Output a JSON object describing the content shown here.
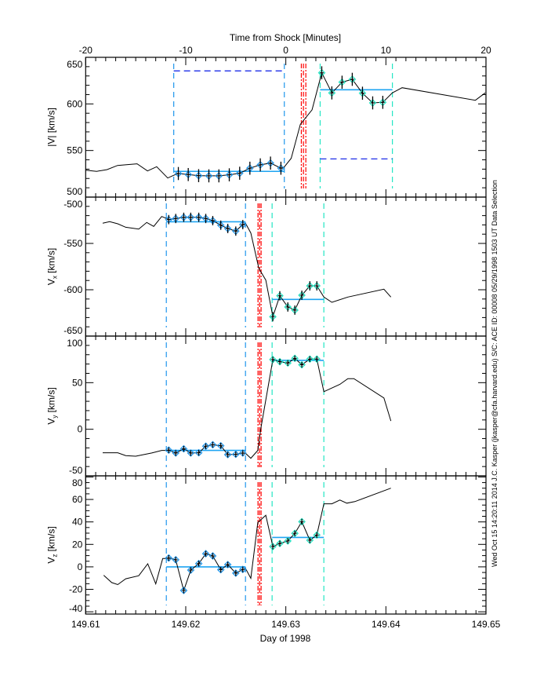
{
  "top_axis": {
    "title": "Time from Shock [Minutes]",
    "ticks": [
      "-20",
      "-10",
      "0",
      "10",
      "20"
    ],
    "range": [
      -20,
      20
    ],
    "minor_step": 1
  },
  "bottom_axis": {
    "title": "Day of 1998",
    "ticks": [
      "149.61",
      "149.62",
      "149.63",
      "149.64",
      "149.65"
    ],
    "range": [
      149.61,
      149.65
    ],
    "minor_step": 0.001
  },
  "side_text": "Wed Oct 15 14:20:11 2014   J.C. Kasper (jkasper@cfa.harvard.edu)   S/C: ACE ID: 00008 05/29/1998   1503 UT Data Selection",
  "colors": {
    "pre_window": "#1e96ec",
    "post_window": "#22e6c4",
    "shock": "#ff0000",
    "window_level": "#1e2ee8",
    "average": "#1ea4f2",
    "line": "#000000"
  },
  "chart_data": [
    {
      "type": "line",
      "xunits": "minutes from shock",
      "ylabel": "|V| [km/s]",
      "ylabel_sub": "",
      "ylim": [
        500,
        650
      ],
      "yticks": [
        500,
        550,
        600,
        650
      ],
      "yminor": 10,
      "line": [
        [
          -20,
          528.9
        ],
        [
          -18.9,
          527.6
        ],
        [
          -17.86,
          529.5
        ],
        [
          -16.81,
          534.0
        ],
        [
          -16.03,
          534.6
        ],
        [
          -14.86,
          535.7
        ],
        [
          -13.82,
          528.1
        ],
        [
          -12.9,
          532.6
        ],
        [
          -11.8,
          520.5
        ],
        [
          -11.2,
          523.4
        ],
        [
          -10.74,
          525.3
        ],
        [
          -9.75,
          524.2
        ],
        [
          -8.71,
          523.0
        ],
        [
          -7.69,
          522.8
        ],
        [
          -6.69,
          522.8
        ],
        [
          -5.65,
          523.9
        ],
        [
          -4.61,
          525.6
        ],
        [
          -3.59,
          531.0
        ],
        [
          -2.55,
          534.6
        ],
        [
          -1.53,
          536.5
        ],
        [
          -0.49,
          531.0
        ],
        [
          -0.16,
          532.3
        ],
        [
          0.54,
          541.6
        ],
        [
          1.45,
          578.1
        ],
        [
          2.62,
          593.6
        ],
        [
          3.59,
          633.4
        ],
        [
          4.6,
          611.8
        ],
        [
          5.62,
          623.3
        ],
        [
          6.64,
          626.4
        ],
        [
          7.66,
          611.5
        ],
        [
          8.68,
          601.1
        ],
        [
          9.69,
          601.7
        ],
        [
          10.64,
          611.8
        ],
        [
          11.62,
          617.4
        ],
        [
          18.94,
          603.9
        ],
        [
          19.92,
          611.8
        ]
      ],
      "pre_points": {
        "x": [
          -10.74,
          -9.75,
          -8.71,
          -7.69,
          -6.69,
          -5.65,
          -4.61,
          -3.59,
          -2.55,
          -1.53,
          -0.49
        ],
        "y": [
          525.3,
          524.2,
          523.0,
          522.8,
          522.8,
          523.9,
          525.6,
          531.0,
          534.6,
          536.5,
          531.0
        ],
        "err": 7
      },
      "post_points": {
        "x": [
          3.59,
          4.6,
          5.62,
          6.64,
          7.66,
          8.68,
          9.69
        ],
        "y": [
          633.4,
          611.8,
          623.3,
          626.4,
          611.5,
          601.1,
          601.7
        ],
        "err": 7
      },
      "pre_window": [
        -11.2,
        -0.15
      ],
      "post_window": [
        3.43,
        10.65
      ],
      "shock_lines": [
        1.55,
        1.76,
        2.0
      ],
      "pre_average": 527.6,
      "post_average": 615.2,
      "pre_window_level": 635.4,
      "post_window_level": 541.0
    },
    {
      "type": "line",
      "xunits": "day",
      "ylabel": "V",
      "ylabel_sub": "x",
      "yunit": "[km/s]",
      "ylim": [
        -650,
        -500
      ],
      "yticks": [
        -650,
        -600,
        -550,
        -500
      ],
      "yminor": 10,
      "line": [
        [
          149.6117,
          -528.2
        ],
        [
          149.6124,
          -526.5
        ],
        [
          149.6132,
          -528.8
        ],
        [
          149.614,
          -532.5
        ],
        [
          149.6153,
          -534.5
        ],
        [
          149.6161,
          -527.4
        ],
        [
          149.6168,
          -531.6
        ],
        [
          149.6176,
          -520.9
        ],
        [
          149.6181,
          -523.1
        ],
        [
          149.6183,
          -524.3
        ],
        [
          149.619,
          -523.1
        ],
        [
          149.6198,
          -521.8
        ],
        [
          149.6205,
          -521.8
        ],
        [
          149.6213,
          -521.8
        ],
        [
          149.622,
          -523.1
        ],
        [
          149.6227,
          -525.4
        ],
        [
          149.6235,
          -530.3
        ],
        [
          149.6242,
          -533.9
        ],
        [
          149.625,
          -536.7
        ],
        [
          149.6257,
          -529.7
        ],
        [
          149.626,
          -528.8
        ],
        [
          149.6265,
          -538.7
        ],
        [
          149.6273,
          -576.9
        ],
        [
          149.628,
          -589.6
        ],
        [
          149.6287,
          -629.1
        ],
        [
          149.6294,
          -606.5
        ],
        [
          149.6302,
          -618.6
        ],
        [
          149.6309,
          -622.0
        ],
        [
          149.6316,
          -605.9
        ],
        [
          149.6324,
          -595.8
        ],
        [
          149.6331,
          -595.8
        ],
        [
          149.6338,
          -607.9
        ],
        [
          149.6346,
          -613.6
        ],
        [
          149.6362,
          -607.9
        ],
        [
          149.6398,
          -599.4
        ],
        [
          149.6405,
          -607.9
        ]
      ],
      "pre_points": {
        "x": [
          149.6183,
          149.619,
          149.6198,
          149.6205,
          149.6213,
          149.622,
          149.6227,
          149.6235,
          149.6242,
          149.625,
          149.6257
        ],
        "y": [
          -524.3,
          -523.1,
          -521.8,
          -521.8,
          -521.8,
          -523.1,
          -525.4,
          -530.3,
          -533.9,
          -536.7,
          -529.7
        ],
        "err": 5
      },
      "post_points": {
        "x": [
          149.6287,
          149.6294,
          149.6302,
          149.6309,
          149.6316,
          149.6324,
          149.6331
        ],
        "y": [
          -629.1,
          -606.5,
          -618.6,
          -622.0,
          -605.9,
          -595.8,
          -595.8
        ],
        "err": 5
      },
      "pre_window": [
        149.61806,
        149.62597
      ],
      "post_window": [
        149.62863,
        149.6338
      ],
      "shock_lines": [
        149.62722,
        149.62738,
        149.62753
      ],
      "pre_average": -526.6,
      "post_average": -610.4
    },
    {
      "type": "line",
      "xunits": "day",
      "ylabel": "V",
      "ylabel_sub": "y",
      "yunit": "[km/s]",
      "ylim": [
        -50,
        100
      ],
      "yticks": [
        -50,
        0,
        50,
        100
      ],
      "yminor": 10,
      "line": [
        [
          149.6117,
          -25.2
        ],
        [
          149.6132,
          -25.2
        ],
        [
          149.614,
          -28.3
        ],
        [
          149.615,
          -28.9
        ],
        [
          149.6166,
          -25.5
        ],
        [
          149.6176,
          -22.7
        ],
        [
          149.6181,
          -22.7
        ],
        [
          149.6183,
          -22.4
        ],
        [
          149.619,
          -25.5
        ],
        [
          149.6198,
          -21.0
        ],
        [
          149.6205,
          -25.5
        ],
        [
          149.6213,
          -25.2
        ],
        [
          149.622,
          -18.2
        ],
        [
          149.6227,
          -16.6
        ],
        [
          149.6235,
          -17.7
        ],
        [
          149.6242,
          -27.2
        ],
        [
          149.625,
          -26.9
        ],
        [
          149.6257,
          -25.5
        ],
        [
          149.626,
          -26.1
        ],
        [
          149.6265,
          -31.1
        ],
        [
          149.6272,
          -22.7
        ],
        [
          149.6275,
          0.5
        ],
        [
          149.6287,
          74.8
        ],
        [
          149.6294,
          72.5
        ],
        [
          149.6302,
          71.1
        ],
        [
          149.6309,
          76.1
        ],
        [
          149.6316,
          69.2
        ],
        [
          149.6324,
          75.3
        ],
        [
          149.6331,
          75.3
        ],
        [
          149.6338,
          40.3
        ],
        [
          149.6354,
          48.2
        ],
        [
          149.6362,
          54.3
        ],
        [
          149.6368,
          54.3
        ],
        [
          149.6398,
          33.6
        ],
        [
          149.6405,
          8.9
        ]
      ],
      "pre_points": {
        "x": [
          149.6183,
          149.619,
          149.6198,
          149.6205,
          149.6213,
          149.622,
          149.6227,
          149.6235,
          149.6242,
          149.625,
          149.6257
        ],
        "y": [
          -22.4,
          -25.5,
          -21.0,
          -25.5,
          -25.2,
          -18.2,
          -16.6,
          -17.7,
          -27.2,
          -26.9,
          -25.5
        ],
        "err": 3
      },
      "post_points": {
        "x": [
          149.6287,
          149.6294,
          149.6302,
          149.6309,
          149.6316,
          149.6324,
          149.6331
        ],
        "y": [
          74.8,
          72.5,
          71.1,
          76.1,
          69.2,
          75.3,
          75.3
        ],
        "err": 3
      },
      "pre_window": [
        149.61806,
        149.62597
      ],
      "post_window": [
        149.62863,
        149.6338
      ],
      "shock_lines": [
        149.62722,
        149.62738,
        149.62753
      ],
      "pre_average": -22.7,
      "post_average": 73.9
    },
    {
      "type": "line",
      "xunits": "day",
      "ylabel": "V",
      "ylabel_sub": "z",
      "yunit": "[km/s]",
      "ylim": [
        -42,
        81
      ],
      "yticks": [
        -40,
        -20,
        0,
        20,
        40,
        60,
        80
      ],
      "yminor": 5,
      "line": [
        [
          149.6118,
          -7.5
        ],
        [
          149.6126,
          -14.0
        ],
        [
          149.6132,
          -15.8
        ],
        [
          149.614,
          -10.6
        ],
        [
          149.6153,
          -7.9
        ],
        [
          149.6162,
          2.7
        ],
        [
          149.617,
          -15.1
        ],
        [
          149.6177,
          7.5
        ],
        [
          149.6181,
          7.5
        ],
        [
          149.6183,
          7.9
        ],
        [
          149.619,
          6.3
        ],
        [
          149.6198,
          -21.0
        ],
        [
          149.6205,
          -2.9
        ],
        [
          149.6213,
          2.9
        ],
        [
          149.622,
          11.7
        ],
        [
          149.6227,
          9.7
        ],
        [
          149.6235,
          -2.5
        ],
        [
          149.6242,
          2.0
        ],
        [
          149.625,
          -5.6
        ],
        [
          149.6257,
          -2.3
        ],
        [
          149.626,
          -1.8
        ],
        [
          149.6265,
          -10.2
        ],
        [
          149.6272,
          39.5
        ],
        [
          149.628,
          45.9
        ],
        [
          149.6287,
          18.1
        ],
        [
          149.6294,
          20.8
        ],
        [
          149.6302,
          23.1
        ],
        [
          149.6309,
          29.8
        ],
        [
          149.6316,
          40.2
        ],
        [
          149.6324,
          23.7
        ],
        [
          149.6331,
          28.3
        ],
        [
          149.6338,
          56.1
        ],
        [
          149.6346,
          56.1
        ],
        [
          149.6354,
          59.5
        ],
        [
          149.6361,
          56.7
        ],
        [
          149.6369,
          58.1
        ],
        [
          149.6405,
          70.0
        ]
      ],
      "pre_points": {
        "x": [
          149.6183,
          149.619,
          149.6198,
          149.6205,
          149.6213,
          149.622,
          149.6227,
          149.6235,
          149.6242,
          149.625,
          149.6257
        ],
        "y": [
          7.9,
          6.3,
          -21.0,
          -2.9,
          2.9,
          11.7,
          9.7,
          -2.5,
          2.0,
          -5.6,
          -2.3
        ],
        "err": 2.5
      },
      "post_points": {
        "x": [
          149.6287,
          149.6294,
          149.6302,
          149.6309,
          149.6316,
          149.6324,
          149.6331
        ],
        "y": [
          18.1,
          20.8,
          23.1,
          29.8,
          40.2,
          23.7,
          28.3
        ],
        "err": 2.5
      },
      "pre_window": [
        149.61806,
        149.62597
      ],
      "post_window": [
        149.62863,
        149.6338
      ],
      "shock_lines": [
        149.62722,
        149.62738,
        149.62753
      ],
      "pre_average": 0.0,
      "post_average": 26.2
    }
  ]
}
